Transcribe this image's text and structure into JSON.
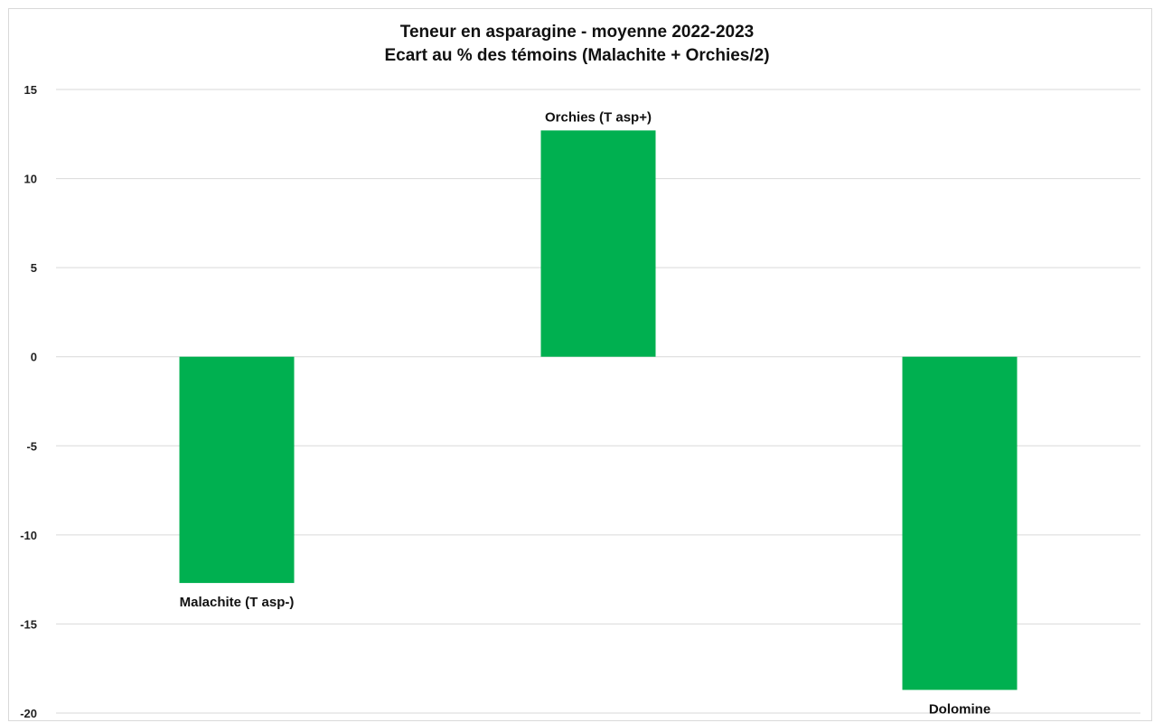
{
  "chart_data": {
    "type": "bar",
    "title": "Teneur en asparagine - moyenne 2022-2023",
    "subtitle": "Ecart au % des témoins (Malachite + Orchies/2)",
    "xlabel": "",
    "ylabel": "",
    "categories": [
      "Malachite (T asp-)",
      "Orchies (T asp+)",
      "Dolomine"
    ],
    "values": [
      -12.7,
      12.7,
      -18.7
    ],
    "ylim": [
      -20,
      15
    ],
    "yticks": [
      15,
      10,
      5,
      0,
      -5,
      -10,
      -15,
      -20
    ],
    "ytick_labels": [
      "15",
      "10",
      "5",
      "0",
      "-5",
      "-10",
      "-15",
      "-20"
    ],
    "bar_color": "#00b050",
    "grid": true,
    "legend": "none",
    "data_labels": "category names at bar ends"
  }
}
